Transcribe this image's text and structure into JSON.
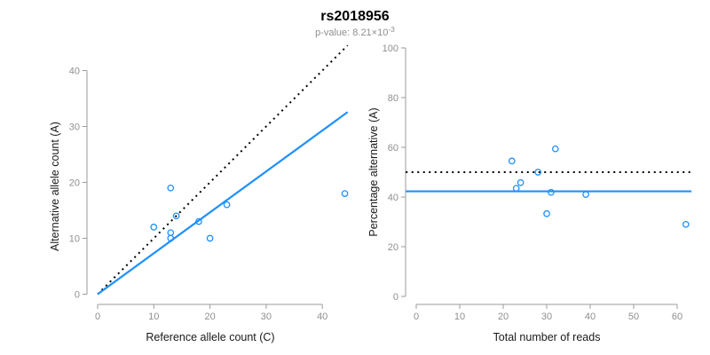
{
  "header": {
    "title": "rs2018956",
    "subtitle_prefix": "p-value: 8.21×10",
    "subtitle_exponent": "-3"
  },
  "colors": {
    "accent": "#1e90ff",
    "dotted_line": "#000000",
    "axis_line": "#9b9b9b",
    "tick_text": "#8f8f8f",
    "axis_title_text": "#1a1a1a"
  },
  "chart_data": [
    {
      "type": "scatter",
      "xlabel": "Reference allele count (C)",
      "ylabel": "Alternative allele count (A)",
      "xlim": [
        0,
        44
      ],
      "ylim": [
        0,
        44
      ],
      "xticks": [
        0,
        10,
        20,
        30,
        40
      ],
      "yticks": [
        0,
        10,
        20,
        30,
        40
      ],
      "grid": false,
      "point_color": "#1e90ff",
      "points": [
        [
          10,
          12
        ],
        [
          13,
          19
        ],
        [
          13,
          11
        ],
        [
          13,
          10
        ],
        [
          14,
          14
        ],
        [
          18,
          13
        ],
        [
          20,
          10
        ],
        [
          23,
          16
        ],
        [
          44,
          18
        ]
      ],
      "lines": [
        {
          "name": "identity-line",
          "slope": 1,
          "intercept": 0,
          "style": "dotted",
          "color": "#000000"
        },
        {
          "name": "fit-line",
          "slope": 0.732,
          "intercept": 0,
          "style": "solid",
          "color": "#1e90ff"
        }
      ]
    },
    {
      "type": "scatter",
      "xlabel": "Total number of reads",
      "ylabel": "Percentage alternative (A)",
      "xlim": [
        0,
        62
      ],
      "ylim": [
        0,
        100
      ],
      "xticks": [
        0,
        10,
        20,
        30,
        40,
        50,
        60
      ],
      "yticks": [
        0,
        20,
        40,
        60,
        80,
        100
      ],
      "grid": false,
      "point_color": "#1e90ff",
      "points": [
        [
          22,
          54.5
        ],
        [
          23,
          43.5
        ],
        [
          24,
          45.8
        ],
        [
          28,
          50
        ],
        [
          30,
          33.3
        ],
        [
          31,
          41.9
        ],
        [
          32,
          59.4
        ],
        [
          39,
          41
        ],
        [
          62,
          29
        ]
      ],
      "lines": [
        {
          "name": "expected-50pct-line",
          "slope": 0,
          "intercept": 50,
          "style": "dotted",
          "color": "#000000"
        },
        {
          "name": "mean-percentage-line",
          "slope": 0,
          "intercept": 42.3,
          "style": "solid",
          "color": "#1e90ff"
        }
      ]
    }
  ]
}
